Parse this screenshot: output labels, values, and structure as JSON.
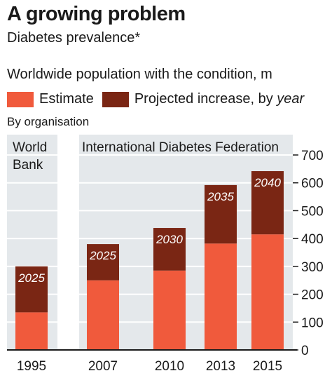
{
  "header": {
    "title": "A growing problem",
    "subtitle": "Diabetes prevalence*",
    "chart_heading": "Worldwide population with the condition, m",
    "group_note": "By organisation"
  },
  "legend": {
    "estimate": "Estimate",
    "projected_prefix": "Projected increase, by ",
    "projected_italic": "year"
  },
  "colors": {
    "estimate": "#f05a3c",
    "projected": "#7a2614",
    "panel": "#e4e8eb",
    "axis": "#1a1a1a"
  },
  "chart_data": {
    "type": "bar",
    "stacked": true,
    "title": "A growing problem",
    "subtitle": "Diabetes prevalence*",
    "ylabel": "Worldwide population with the condition, m",
    "categories": [
      "1995",
      "2007",
      "2010",
      "2013",
      "2015"
    ],
    "series": [
      {
        "name": "Estimate",
        "values": [
          135,
          250,
          285,
          382,
          415
        ]
      },
      {
        "name": "Projected increase, by year",
        "values": [
          165,
          130,
          153,
          210,
          227
        ]
      }
    ],
    "projection_year_labels": [
      "2025",
      "2025",
      "2030",
      "2035",
      "2040"
    ],
    "organisation_groups": [
      {
        "label": "World Bank",
        "label_lines": [
          "World",
          "Bank"
        ],
        "categories": [
          "1995"
        ]
      },
      {
        "label": "International Diabetes Federation",
        "categories": [
          "2007",
          "2010",
          "2013",
          "2015"
        ]
      }
    ],
    "ylim": [
      0,
      700
    ],
    "yticks": [
      0,
      100,
      200,
      300,
      400,
      500,
      600,
      700
    ],
    "axis_position": "right",
    "grid": true
  }
}
